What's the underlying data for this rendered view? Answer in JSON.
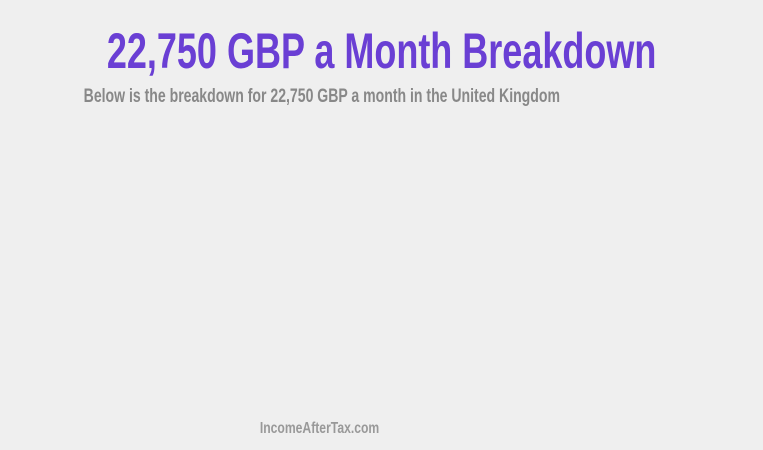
{
  "header": {
    "title": "22,750 GBP a Month Breakdown",
    "subtitle": "Below is the breakdown for 22,750 GBP a month in the United Kingdom"
  },
  "footer": {
    "site": "IncomeAfterTax.com"
  },
  "colors": {
    "title": "#6a3fd4",
    "subtitle": "#888888",
    "background": "#efefef"
  }
}
